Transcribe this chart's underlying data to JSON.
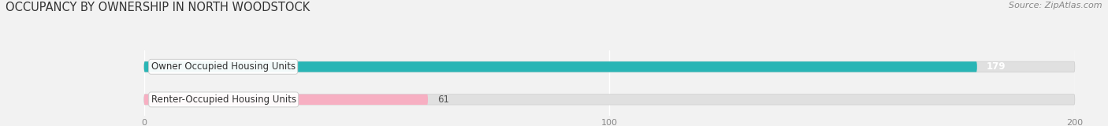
{
  "title": "OCCUPANCY BY OWNERSHIP IN NORTH WOODSTOCK",
  "source": "Source: ZipAtlas.com",
  "categories": [
    "Owner Occupied Housing Units",
    "Renter-Occupied Housing Units"
  ],
  "values": [
    179,
    61
  ],
  "bar_colors": [
    "#29b5b5",
    "#f7afc2"
  ],
  "bar_label_fontsize": 8.5,
  "title_fontsize": 10.5,
  "source_fontsize": 8,
  "xlim": [
    0,
    200
  ],
  "xticks": [
    0,
    100,
    200
  ],
  "bar_height": 0.32,
  "background_color": "#f2f2f2",
  "bar_bg_color": "#e0e0e0",
  "value_label_color_0": "#ffffff",
  "value_label_color_1": "#555555"
}
